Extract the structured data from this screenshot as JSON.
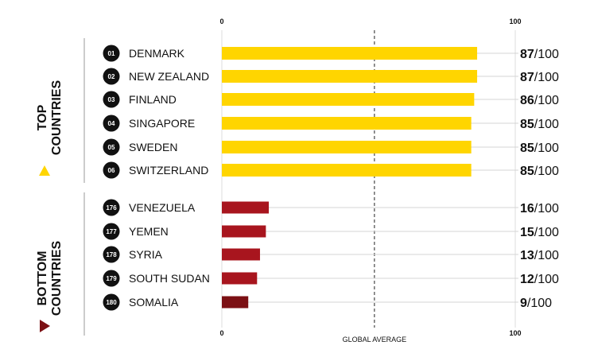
{
  "chart_data": {
    "type": "bar",
    "orientation": "horizontal",
    "xlim": [
      0,
      100
    ],
    "x_ticks": [
      "0",
      "100"
    ],
    "reference_line": {
      "value": 52,
      "label": "GLOBAL AVERAGE"
    },
    "colors": {
      "top": "#FFD500",
      "bottom": "#A8151E",
      "lowest": "#7C1014",
      "top_marker": "#FFD500",
      "bottom_marker": "#7C1014",
      "rank_badge": "#111111"
    },
    "groups": [
      {
        "label_line1": "TOP",
        "label_line2": "COUNTRIES",
        "rows": [
          {
            "rank": "01",
            "country": "DENMARK",
            "score": 87,
            "score_label": "87",
            "suffix": "/100"
          },
          {
            "rank": "02",
            "country": "NEW ZEALAND",
            "score": 87,
            "score_label": "87",
            "suffix": "/100"
          },
          {
            "rank": "03",
            "country": "FINLAND",
            "score": 86,
            "score_label": "86",
            "suffix": "/100"
          },
          {
            "rank": "04",
            "country": "SINGAPORE",
            "score": 85,
            "score_label": "85",
            "suffix": "/100"
          },
          {
            "rank": "05",
            "country": "SWEDEN",
            "score": 85,
            "score_label": "85",
            "suffix": "/100"
          },
          {
            "rank": "06",
            "country": "SWITZERLAND",
            "score": 85,
            "score_label": "85",
            "suffix": "/100"
          }
        ]
      },
      {
        "label_line1": "BOTTOM",
        "label_line2": "COUNTRIES",
        "rows": [
          {
            "rank": "176",
            "country": "VENEZUELA",
            "score": 16,
            "score_label": "16",
            "suffix": "/100"
          },
          {
            "rank": "177",
            "country": "YEMEN",
            "score": 15,
            "score_label": "15",
            "suffix": "/100"
          },
          {
            "rank": "178",
            "country": "SYRIA",
            "score": 13,
            "score_label": "13",
            "suffix": "/100"
          },
          {
            "rank": "179",
            "country": "SOUTH SUDAN",
            "score": 12,
            "score_label": "12",
            "suffix": "/100"
          },
          {
            "rank": "180",
            "country": "SOMALIA",
            "score": 9,
            "score_label": "9",
            "suffix": "/100"
          }
        ]
      }
    ]
  }
}
